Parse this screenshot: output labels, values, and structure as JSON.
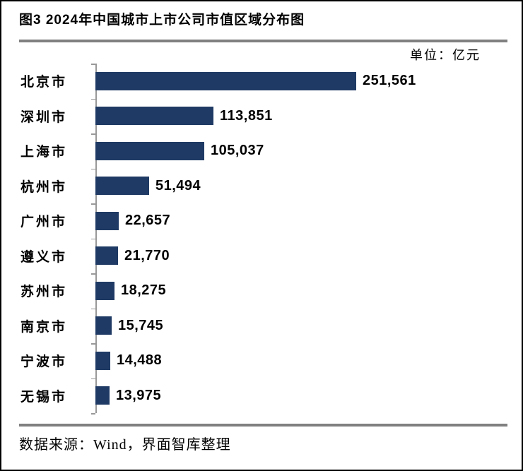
{
  "title": "图3 2024年中国城市上市公司市值区域分布图",
  "unit_label": "单位：亿元",
  "source": "数据来源：Wind，界面智库整理",
  "colors": {
    "bar": "#1F3A64",
    "rule": "#808080",
    "axis": "#999999",
    "text": "#000000",
    "background": "#FFFFFF"
  },
  "chart_data": {
    "type": "bar",
    "orientation": "horizontal",
    "title": "图3 2024年中国城市上市公司市值区域分布图",
    "unit": "亿元",
    "categories": [
      "北京市",
      "深圳市",
      "上海市",
      "杭州市",
      "广州市",
      "遵义市",
      "苏州市",
      "南京市",
      "宁波市",
      "无锡市"
    ],
    "values": [
      251561,
      113851,
      105037,
      51494,
      22657,
      21770,
      18275,
      15745,
      14488,
      13975
    ],
    "value_labels": [
      "251,561",
      "113,851",
      "105,037",
      "51,494",
      "22,657",
      "21,770",
      "18,275",
      "15,745",
      "14,488",
      "13,975"
    ],
    "xlim": [
      0,
      260000
    ],
    "grid": false,
    "legend": false,
    "data_labels": "outside-end",
    "source": "数据来源：Wind，界面智库整理"
  }
}
